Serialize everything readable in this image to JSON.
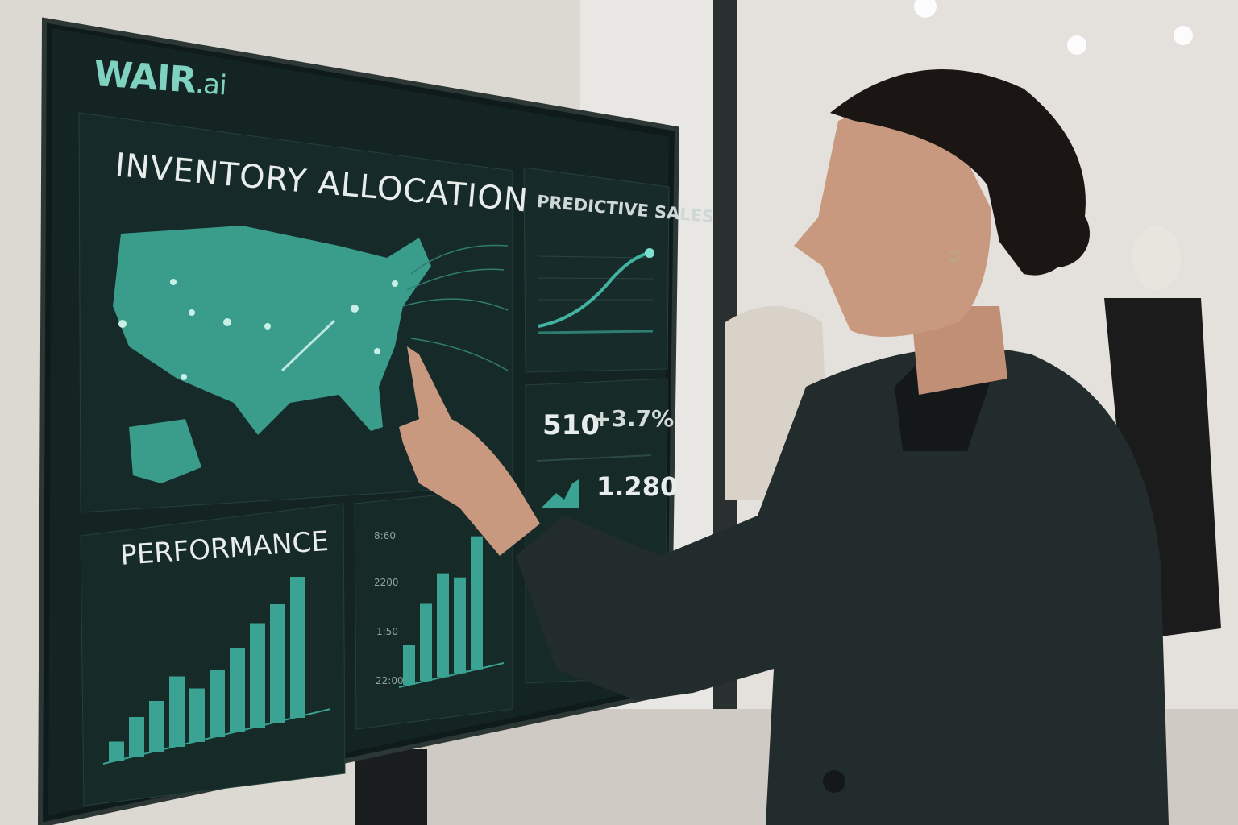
{
  "screen": {
    "logo": {
      "brand": "WAIR",
      "suffix": ".ai"
    },
    "inventory_panel": {
      "title": "INVENTORY ALLOCATION"
    },
    "predictive_panel": {
      "title": "PREDICTIVE SALES"
    },
    "kpi_panel": {
      "value_1": "510",
      "change_1": "+3.7%",
      "value_2": "1.280"
    },
    "performance_panel": {
      "title": "PERFORMANCE",
      "bar_levels": [
        0.14,
        0.28,
        0.36,
        0.5,
        0.38,
        0.48,
        0.6,
        0.74,
        0.84,
        1.0
      ]
    },
    "bar_panel": {
      "tick_labels": [
        "8:60",
        "2200",
        "1:50",
        "22:00"
      ],
      "bar_levels": [
        0.3,
        0.58,
        0.78,
        0.72,
        1.0
      ]
    }
  },
  "colors": {
    "accent": "#3aa393",
    "screen_bg": "#142423",
    "jacket": "#232c2c",
    "skin": "#c9997f",
    "hair": "#1b1613"
  }
}
